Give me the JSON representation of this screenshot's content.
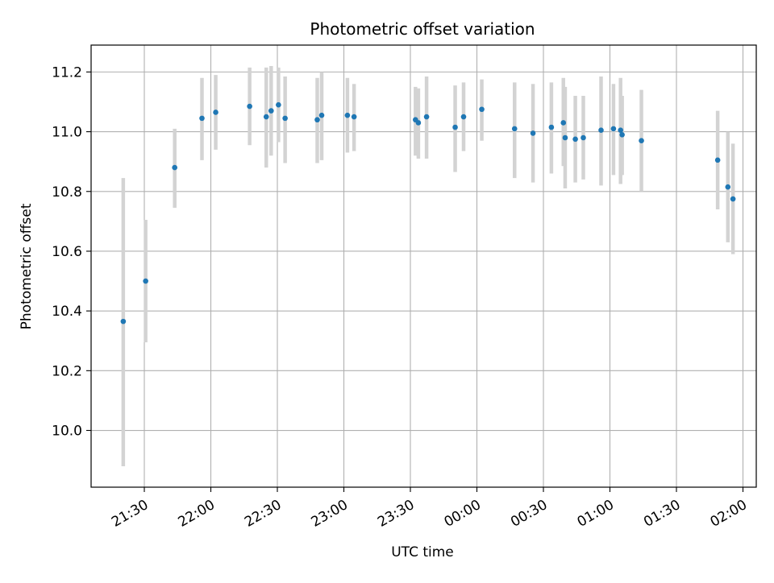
{
  "chart_data": {
    "type": "scatter",
    "title": "Photometric offset variation",
    "xlabel": "UTC time",
    "ylabel": "Photometric offset",
    "x_unit": "minutes since 21:00 UTC (continuing past midnight)",
    "xlim": [
      6,
      306
    ],
    "ylim": [
      9.81,
      11.29
    ],
    "xticks": [
      {
        "value": 30,
        "label": "21:30"
      },
      {
        "value": 60,
        "label": "22:00"
      },
      {
        "value": 90,
        "label": "22:30"
      },
      {
        "value": 120,
        "label": "23:00"
      },
      {
        "value": 150,
        "label": "23:30"
      },
      {
        "value": 180,
        "label": "00:00"
      },
      {
        "value": 210,
        "label": "00:30"
      },
      {
        "value": 240,
        "label": "01:00"
      },
      {
        "value": 270,
        "label": "01:30"
      },
      {
        "value": 300,
        "label": "02:00"
      }
    ],
    "yticks": [
      {
        "value": 10.0,
        "label": "10.0"
      },
      {
        "value": 10.2,
        "label": "10.2"
      },
      {
        "value": 10.4,
        "label": "10.4"
      },
      {
        "value": 10.6,
        "label": "10.6"
      },
      {
        "value": 10.8,
        "label": "10.8"
      },
      {
        "value": 11.0,
        "label": "11.0"
      },
      {
        "value": 11.2,
        "label": "11.2"
      }
    ],
    "grid": true,
    "marker_color": "#1f77b4",
    "errorbar_color": "#d3d3d3",
    "points": [
      {
        "x": 20.5,
        "y": 10.365,
        "lo": 9.88,
        "hi": 10.845
      },
      {
        "x": 30.6,
        "y": 10.5,
        "lo": 10.295,
        "hi": 10.705
      },
      {
        "x": 43.7,
        "y": 10.88,
        "lo": 10.745,
        "hi": 11.01
      },
      {
        "x": 56.0,
        "y": 11.045,
        "lo": 10.905,
        "hi": 11.18
      },
      {
        "x": 62.2,
        "y": 11.065,
        "lo": 10.94,
        "hi": 11.19
      },
      {
        "x": 77.5,
        "y": 11.085,
        "lo": 10.955,
        "hi": 11.215
      },
      {
        "x": 85.0,
        "y": 11.05,
        "lo": 10.88,
        "hi": 11.215
      },
      {
        "x": 87.2,
        "y": 11.07,
        "lo": 10.92,
        "hi": 11.22
      },
      {
        "x": 90.5,
        "y": 11.09,
        "lo": 10.965,
        "hi": 11.215
      },
      {
        "x": 93.5,
        "y": 11.045,
        "lo": 10.895,
        "hi": 11.185
      },
      {
        "x": 108.0,
        "y": 11.04,
        "lo": 10.895,
        "hi": 11.18
      },
      {
        "x": 110.0,
        "y": 11.055,
        "lo": 10.905,
        "hi": 11.2
      },
      {
        "x": 121.6,
        "y": 11.055,
        "lo": 10.93,
        "hi": 11.18
      },
      {
        "x": 124.6,
        "y": 11.05,
        "lo": 10.935,
        "hi": 11.16
      },
      {
        "x": 152.3,
        "y": 11.04,
        "lo": 10.92,
        "hi": 11.15
      },
      {
        "x": 153.6,
        "y": 11.03,
        "lo": 10.91,
        "hi": 11.145
      },
      {
        "x": 157.3,
        "y": 11.05,
        "lo": 10.91,
        "hi": 11.185
      },
      {
        "x": 170.2,
        "y": 11.015,
        "lo": 10.865,
        "hi": 11.155
      },
      {
        "x": 174.0,
        "y": 11.05,
        "lo": 10.935,
        "hi": 11.165
      },
      {
        "x": 182.2,
        "y": 11.075,
        "lo": 10.97,
        "hi": 11.175
      },
      {
        "x": 197.0,
        "y": 11.01,
        "lo": 10.845,
        "hi": 11.165
      },
      {
        "x": 205.3,
        "y": 10.995,
        "lo": 10.83,
        "hi": 11.16
      },
      {
        "x": 213.6,
        "y": 11.015,
        "lo": 10.86,
        "hi": 11.165
      },
      {
        "x": 219.0,
        "y": 11.03,
        "lo": 10.885,
        "hi": 11.18
      },
      {
        "x": 219.8,
        "y": 10.98,
        "lo": 10.81,
        "hi": 11.15
      },
      {
        "x": 224.4,
        "y": 10.975,
        "lo": 10.83,
        "hi": 11.12
      },
      {
        "x": 228.0,
        "y": 10.98,
        "lo": 10.84,
        "hi": 11.12
      },
      {
        "x": 236.0,
        "y": 11.005,
        "lo": 10.82,
        "hi": 11.185
      },
      {
        "x": 241.6,
        "y": 11.01,
        "lo": 10.855,
        "hi": 11.16
      },
      {
        "x": 244.8,
        "y": 11.005,
        "lo": 10.825,
        "hi": 11.18
      },
      {
        "x": 245.5,
        "y": 10.99,
        "lo": 10.855,
        "hi": 11.12
      },
      {
        "x": 254.2,
        "y": 10.97,
        "lo": 10.8,
        "hi": 11.14
      },
      {
        "x": 288.6,
        "y": 10.905,
        "lo": 10.74,
        "hi": 11.07
      },
      {
        "x": 293.2,
        "y": 10.815,
        "lo": 10.63,
        "hi": 11.0
      },
      {
        "x": 295.5,
        "y": 10.775,
        "lo": 10.59,
        "hi": 10.96
      }
    ]
  }
}
